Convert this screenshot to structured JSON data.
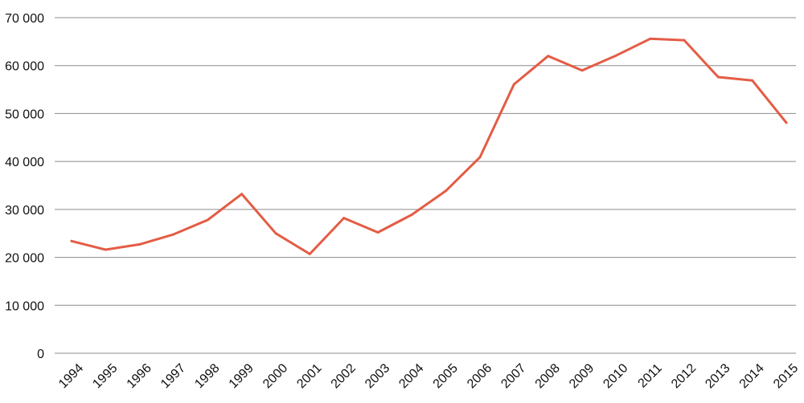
{
  "chart_data": {
    "type": "line",
    "title": "",
    "xlabel": "",
    "ylabel": "",
    "x": [
      "1994",
      "1995",
      "1996",
      "1997",
      "1998",
      "1999",
      "2000",
      "2001",
      "2002",
      "2003",
      "2004",
      "2005",
      "2006",
      "2007",
      "2008",
      "2009",
      "2010",
      "2011",
      "2012",
      "2013",
      "2014",
      "2015"
    ],
    "series": [
      {
        "values": [
          23400,
          21600,
          22700,
          24800,
          27800,
          33200,
          25000,
          20700,
          28200,
          25200,
          28900,
          33900,
          40900,
          56100,
          62000,
          59000,
          62100,
          65600,
          65300,
          57600,
          56900,
          48100
        ],
        "color": "#e45c45"
      }
    ],
    "ylim": [
      0,
      70000
    ],
    "yticks": [
      0,
      10000,
      20000,
      30000,
      40000,
      50000,
      60000,
      70000
    ],
    "ytick_labels": [
      "0",
      "10 000",
      "20 000",
      "30 000",
      "40 000",
      "50 000",
      "60 000",
      "70 000"
    ],
    "grid": true,
    "legend": "none"
  }
}
